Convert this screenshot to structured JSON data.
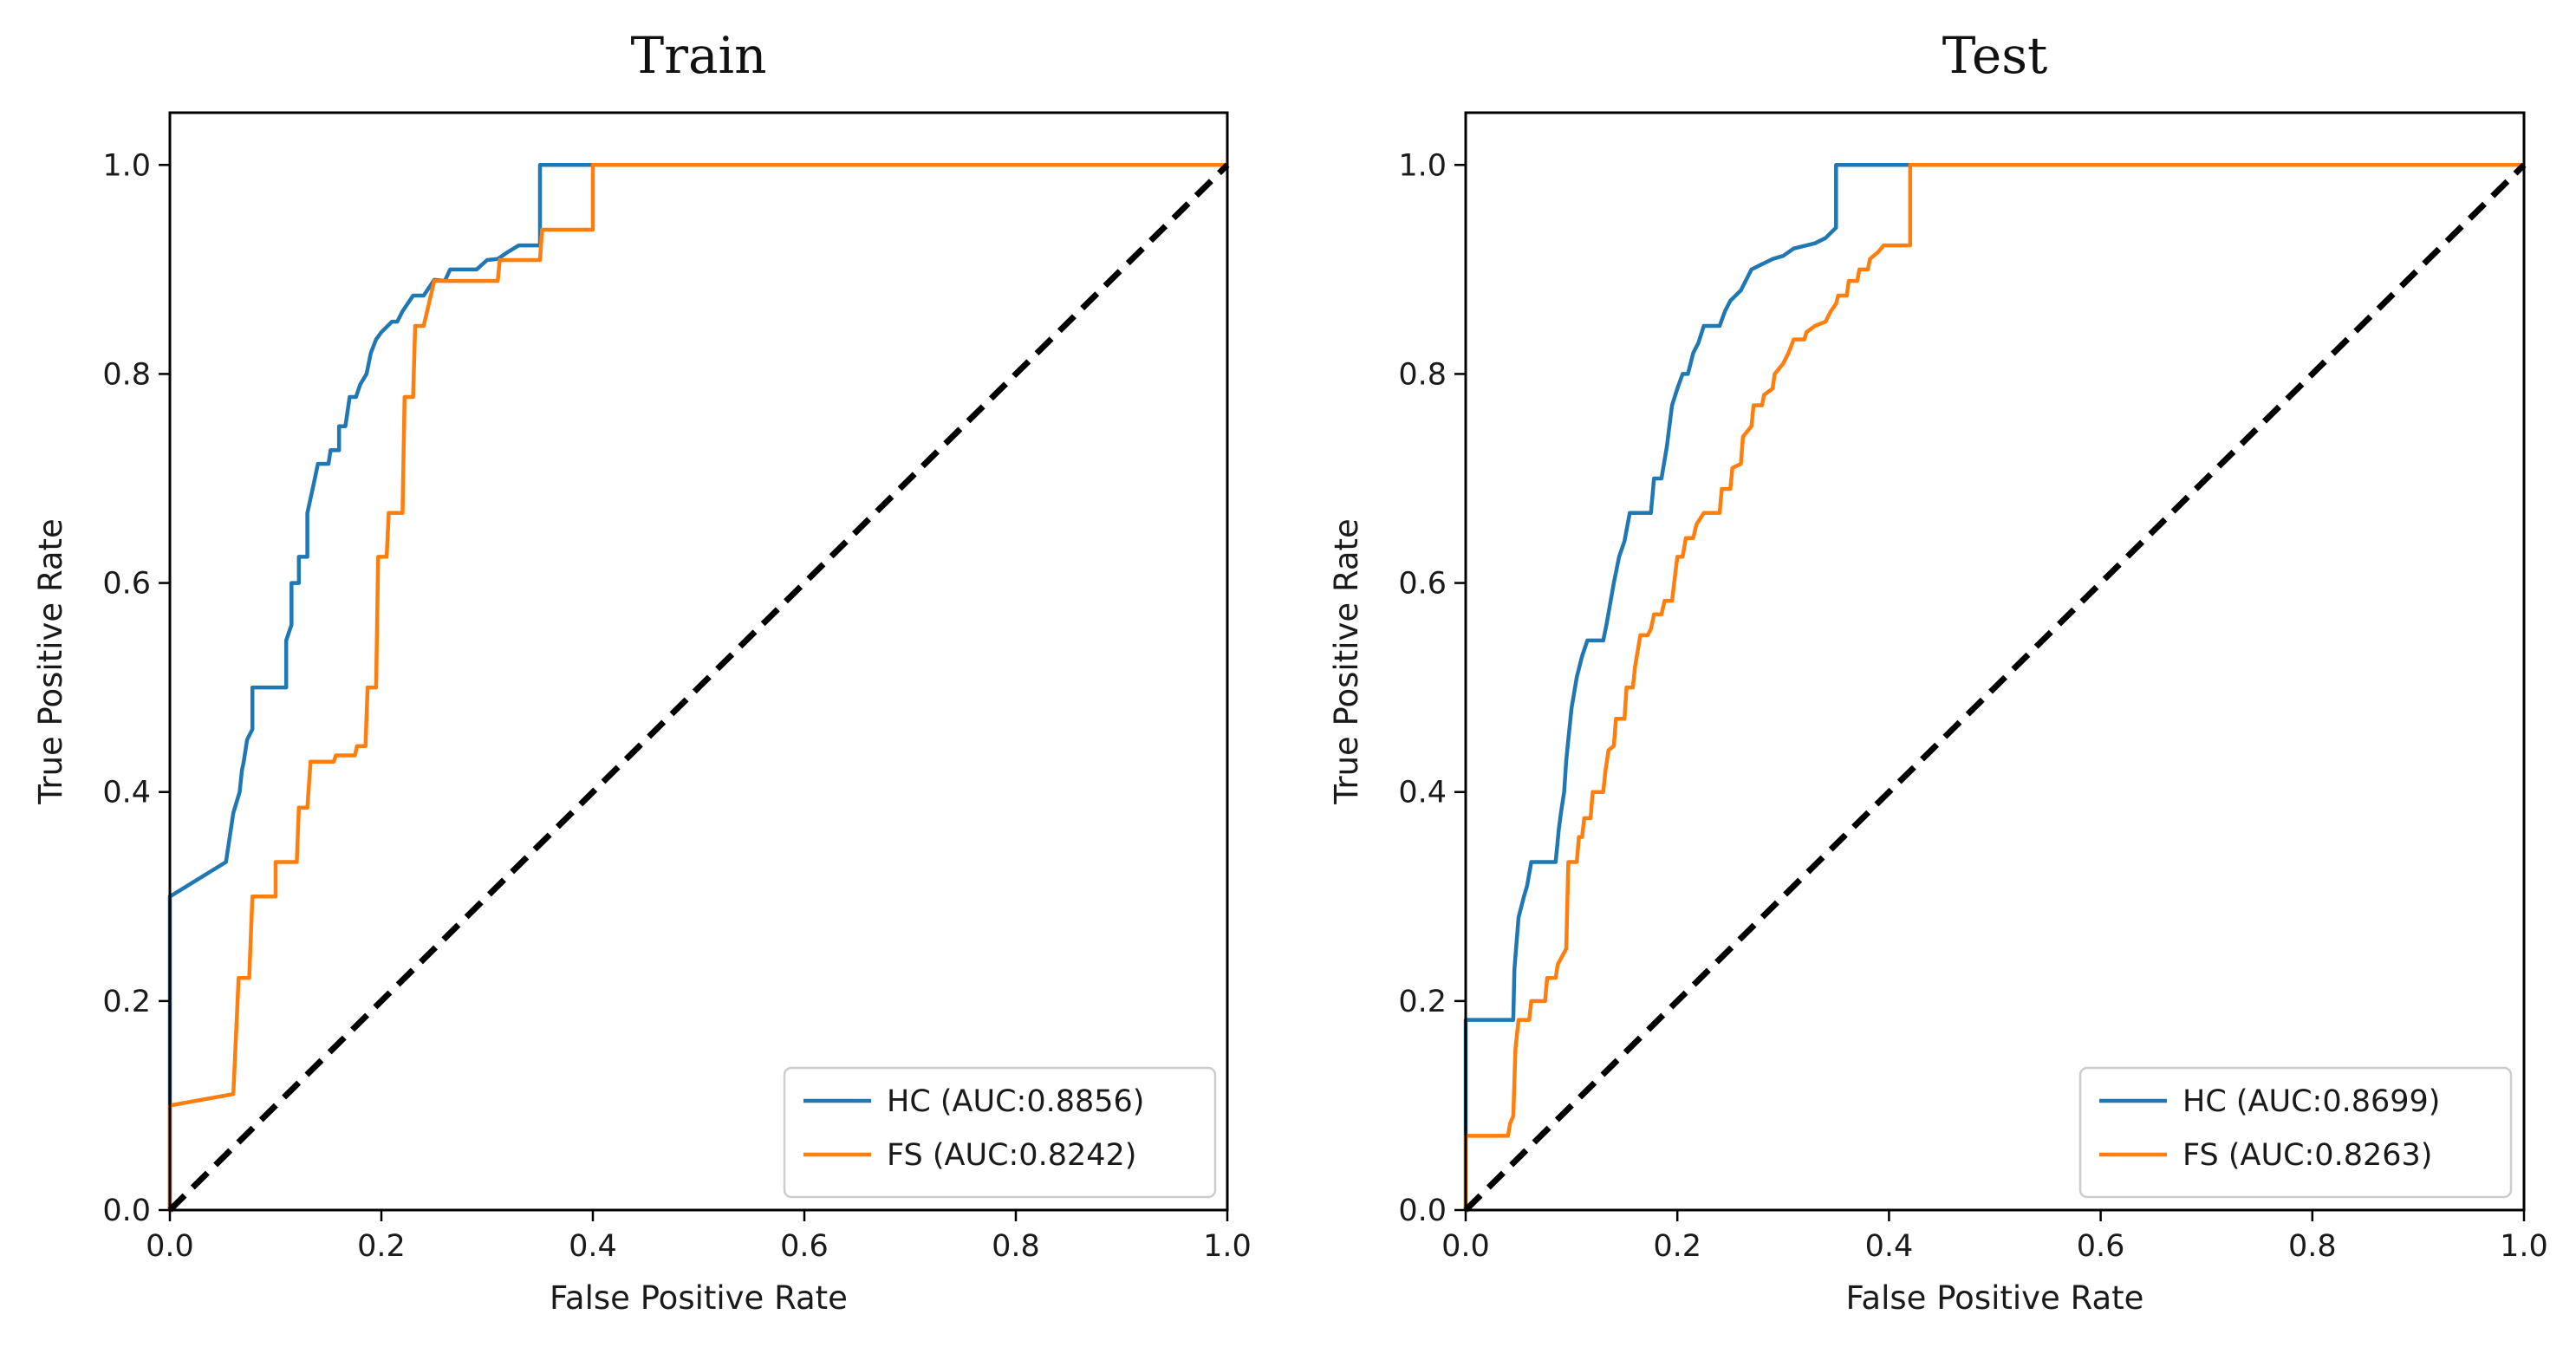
{
  "chart_data": [
    {
      "type": "line",
      "title": "Train",
      "xlabel": "False Positive Rate",
      "ylabel": "True Positive Rate",
      "xlim": [
        0.0,
        1.0
      ],
      "ylim": [
        0.0,
        1.05
      ],
      "xticks": [
        "0.0",
        "0.2",
        "0.4",
        "0.6",
        "0.8",
        "1.0"
      ],
      "yticks": [
        "0.0",
        "0.2",
        "0.4",
        "0.6",
        "0.8",
        "1.0"
      ],
      "legend_position": "lower-right",
      "grid": false,
      "series": [
        {
          "name": "HC (AUC:0.8856)",
          "color": "#1f77b4",
          "points": [
            [
              0,
              0
            ],
            [
              0,
              0.3
            ],
            [
              0.053,
              0.333
            ],
            [
              0.06,
              0.38
            ],
            [
              0.066,
              0.4
            ],
            [
              0.068,
              0.42
            ],
            [
              0.07,
              0.43
            ],
            [
              0.073,
              0.45
            ],
            [
              0.078,
              0.46
            ],
            [
              0.078,
              0.5
            ],
            [
              0.11,
              0.5
            ],
            [
              0.11,
              0.545
            ],
            [
              0.115,
              0.56
            ],
            [
              0.115,
              0.6
            ],
            [
              0.122,
              0.6
            ],
            [
              0.122,
              0.625
            ],
            [
              0.13,
              0.625
            ],
            [
              0.13,
              0.667
            ],
            [
              0.135,
              0.69
            ],
            [
              0.14,
              0.714
            ],
            [
              0.15,
              0.714
            ],
            [
              0.152,
              0.727
            ],
            [
              0.16,
              0.727
            ],
            [
              0.16,
              0.75
            ],
            [
              0.166,
              0.75
            ],
            [
              0.17,
              0.778
            ],
            [
              0.176,
              0.778
            ],
            [
              0.18,
              0.79
            ],
            [
              0.186,
              0.8
            ],
            [
              0.19,
              0.82
            ],
            [
              0.195,
              0.833
            ],
            [
              0.2,
              0.84
            ],
            [
              0.21,
              0.85
            ],
            [
              0.215,
              0.85
            ],
            [
              0.22,
              0.86
            ],
            [
              0.23,
              0.875
            ],
            [
              0.24,
              0.875
            ],
            [
              0.25,
              0.89
            ],
            [
              0.26,
              0.889
            ],
            [
              0.265,
              0.9
            ],
            [
              0.29,
              0.9
            ],
            [
              0.3,
              0.909
            ],
            [
              0.31,
              0.91
            ],
            [
              0.32,
              0.917
            ],
            [
              0.33,
              0.923
            ],
            [
              0.35,
              0.923
            ],
            [
              0.35,
              1.0
            ],
            [
              1.0,
              1.0
            ]
          ]
        },
        {
          "name": "FS (AUC:0.8242)",
          "color": "#ff7f0e",
          "points": [
            [
              0,
              0
            ],
            [
              0,
              0.1
            ],
            [
              0.06,
              0.111
            ],
            [
              0.065,
              0.222
            ],
            [
              0.075,
              0.222
            ],
            [
              0.078,
              0.3
            ],
            [
              0.1,
              0.3
            ],
            [
              0.1,
              0.333
            ],
            [
              0.12,
              0.333
            ],
            [
              0.122,
              0.385
            ],
            [
              0.13,
              0.385
            ],
            [
              0.133,
              0.429
            ],
            [
              0.155,
              0.429
            ],
            [
              0.157,
              0.435
            ],
            [
              0.175,
              0.435
            ],
            [
              0.177,
              0.444
            ],
            [
              0.185,
              0.444
            ],
            [
              0.187,
              0.5
            ],
            [
              0.195,
              0.5
            ],
            [
              0.197,
              0.625
            ],
            [
              0.205,
              0.625
            ],
            [
              0.207,
              0.667
            ],
            [
              0.22,
              0.667
            ],
            [
              0.222,
              0.778
            ],
            [
              0.23,
              0.778
            ],
            [
              0.232,
              0.846
            ],
            [
              0.24,
              0.846
            ],
            [
              0.25,
              0.889
            ],
            [
              0.31,
              0.889
            ],
            [
              0.312,
              0.909
            ],
            [
              0.35,
              0.909
            ],
            [
              0.352,
              0.938
            ],
            [
              0.4,
              0.938
            ],
            [
              0.4,
              1.0
            ],
            [
              1.0,
              1.0
            ]
          ]
        },
        {
          "name": "",
          "color": "#000000",
          "dashed": true,
          "points": [
            [
              0,
              0
            ],
            [
              1,
              1
            ]
          ]
        }
      ],
      "legend": [
        "HC (AUC:0.8856)",
        "FS (AUC:0.8242)"
      ]
    },
    {
      "type": "line",
      "title": "Test",
      "xlabel": "False Positive Rate",
      "ylabel": "True Positive Rate",
      "xlim": [
        0.0,
        1.0
      ],
      "ylim": [
        0.0,
        1.05
      ],
      "xticks": [
        "0.0",
        "0.2",
        "0.4",
        "0.6",
        "0.8",
        "1.0"
      ],
      "yticks": [
        "0.0",
        "0.2",
        "0.4",
        "0.6",
        "0.8",
        "1.0"
      ],
      "legend_position": "lower-right",
      "grid": false,
      "series": [
        {
          "name": "HC (AUC:0.8699)",
          "color": "#1f77b4",
          "points": [
            [
              0,
              0
            ],
            [
              0,
              0.182
            ],
            [
              0.045,
              0.182
            ],
            [
              0.046,
              0.23
            ],
            [
              0.05,
              0.28
            ],
            [
              0.055,
              0.3
            ],
            [
              0.058,
              0.31
            ],
            [
              0.062,
              0.333
            ],
            [
              0.085,
              0.333
            ],
            [
              0.088,
              0.364
            ],
            [
              0.09,
              0.38
            ],
            [
              0.093,
              0.4
            ],
            [
              0.095,
              0.43
            ],
            [
              0.097,
              0.45
            ],
            [
              0.1,
              0.48
            ],
            [
              0.105,
              0.51
            ],
            [
              0.11,
              0.53
            ],
            [
              0.115,
              0.545
            ],
            [
              0.13,
              0.545
            ],
            [
              0.133,
              0.56
            ],
            [
              0.14,
              0.6
            ],
            [
              0.145,
              0.625
            ],
            [
              0.15,
              0.64
            ],
            [
              0.155,
              0.667
            ],
            [
              0.175,
              0.667
            ],
            [
              0.178,
              0.7
            ],
            [
              0.185,
              0.7
            ],
            [
              0.19,
              0.73
            ],
            [
              0.195,
              0.77
            ],
            [
              0.2,
              0.786
            ],
            [
              0.205,
              0.8
            ],
            [
              0.21,
              0.8
            ],
            [
              0.215,
              0.82
            ],
            [
              0.22,
              0.83
            ],
            [
              0.225,
              0.846
            ],
            [
              0.24,
              0.846
            ],
            [
              0.245,
              0.86
            ],
            [
              0.25,
              0.87
            ],
            [
              0.26,
              0.88
            ],
            [
              0.265,
              0.89
            ],
            [
              0.27,
              0.9
            ],
            [
              0.28,
              0.905
            ],
            [
              0.29,
              0.91
            ],
            [
              0.3,
              0.913
            ],
            [
              0.31,
              0.92
            ],
            [
              0.33,
              0.925
            ],
            [
              0.34,
              0.93
            ],
            [
              0.35,
              0.94
            ],
            [
              0.35,
              1.0
            ],
            [
              1.0,
              1.0
            ]
          ]
        },
        {
          "name": "FS (AUC:0.8263)",
          "color": "#ff7f0e",
          "points": [
            [
              0,
              0
            ],
            [
              0,
              0.071
            ],
            [
              0.04,
              0.071
            ],
            [
              0.042,
              0.083
            ],
            [
              0.045,
              0.09
            ],
            [
              0.047,
              0.154
            ],
            [
              0.05,
              0.182
            ],
            [
              0.06,
              0.182
            ],
            [
              0.062,
              0.2
            ],
            [
              0.075,
              0.2
            ],
            [
              0.077,
              0.222
            ],
            [
              0.085,
              0.222
            ],
            [
              0.087,
              0.235
            ],
            [
              0.095,
              0.25
            ],
            [
              0.097,
              0.333
            ],
            [
              0.105,
              0.333
            ],
            [
              0.107,
              0.357
            ],
            [
              0.11,
              0.357
            ],
            [
              0.112,
              0.375
            ],
            [
              0.118,
              0.375
            ],
            [
              0.12,
              0.4
            ],
            [
              0.13,
              0.4
            ],
            [
              0.132,
              0.42
            ],
            [
              0.135,
              0.44
            ],
            [
              0.14,
              0.444
            ],
            [
              0.142,
              0.47
            ],
            [
              0.15,
              0.47
            ],
            [
              0.152,
              0.5
            ],
            [
              0.158,
              0.5
            ],
            [
              0.16,
              0.52
            ],
            [
              0.165,
              0.55
            ],
            [
              0.172,
              0.55
            ],
            [
              0.175,
              0.556
            ],
            [
              0.178,
              0.57
            ],
            [
              0.185,
              0.57
            ],
            [
              0.188,
              0.583
            ],
            [
              0.195,
              0.583
            ],
            [
              0.197,
              0.6
            ],
            [
              0.2,
              0.625
            ],
            [
              0.205,
              0.625
            ],
            [
              0.208,
              0.643
            ],
            [
              0.215,
              0.643
            ],
            [
              0.218,
              0.656
            ],
            [
              0.225,
              0.667
            ],
            [
              0.24,
              0.667
            ],
            [
              0.242,
              0.69
            ],
            [
              0.25,
              0.69
            ],
            [
              0.252,
              0.71
            ],
            [
              0.26,
              0.714
            ],
            [
              0.262,
              0.74
            ],
            [
              0.27,
              0.75
            ],
            [
              0.272,
              0.77
            ],
            [
              0.28,
              0.77
            ],
            [
              0.282,
              0.78
            ],
            [
              0.29,
              0.786
            ],
            [
              0.292,
              0.8
            ],
            [
              0.3,
              0.81
            ],
            [
              0.305,
              0.82
            ],
            [
              0.31,
              0.833
            ],
            [
              0.32,
              0.833
            ],
            [
              0.322,
              0.84
            ],
            [
              0.33,
              0.846
            ],
            [
              0.34,
              0.85
            ],
            [
              0.345,
              0.86
            ],
            [
              0.35,
              0.867
            ],
            [
              0.352,
              0.875
            ],
            [
              0.36,
              0.875
            ],
            [
              0.362,
              0.889
            ],
            [
              0.37,
              0.889
            ],
            [
              0.372,
              0.9
            ],
            [
              0.38,
              0.9
            ],
            [
              0.382,
              0.91
            ],
            [
              0.39,
              0.917
            ],
            [
              0.395,
              0.923
            ],
            [
              0.42,
              0.923
            ],
            [
              0.42,
              1.0
            ],
            [
              1.0,
              1.0
            ]
          ]
        },
        {
          "name": "",
          "color": "#000000",
          "dashed": true,
          "points": [
            [
              0,
              0
            ],
            [
              1,
              1
            ]
          ]
        }
      ],
      "legend": [
        "HC (AUC:0.8699)",
        "FS (AUC:0.8263)"
      ]
    }
  ]
}
